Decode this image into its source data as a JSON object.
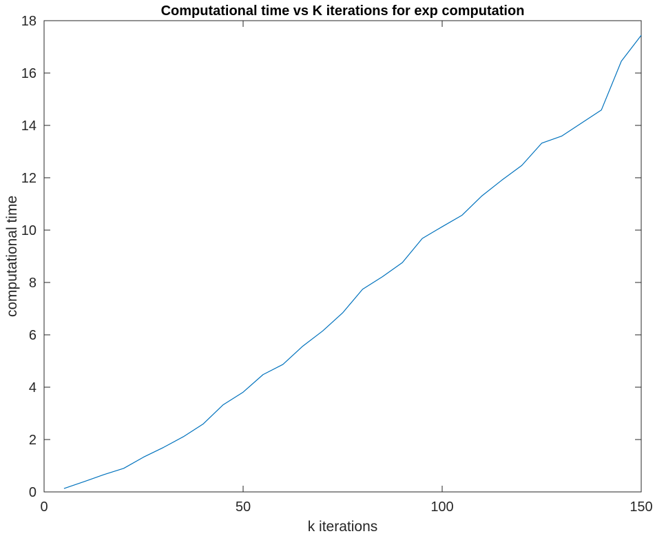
{
  "chart_data": {
    "type": "line",
    "title": "Computational time vs K iterations for exp computation",
    "xlabel": "k iterations",
    "ylabel": "computational time",
    "xlim": [
      0,
      150
    ],
    "ylim": [
      0,
      18
    ],
    "xticks": [
      0,
      50,
      100,
      150
    ],
    "yticks": [
      0,
      2,
      4,
      6,
      8,
      10,
      12,
      14,
      16,
      18
    ],
    "grid": false,
    "legend": "none",
    "line_color": "#0072BD",
    "series": [
      {
        "x": [
          5,
          10,
          15,
          20,
          25,
          30,
          35,
          40,
          45,
          50,
          55,
          60,
          65,
          70,
          75,
          80,
          85,
          90,
          95,
          100,
          105,
          110,
          115,
          120,
          125,
          130,
          135,
          140,
          145,
          150
        ],
        "values": [
          0.13,
          0.39,
          0.66,
          0.9,
          1.33,
          1.7,
          2.11,
          2.6,
          3.33,
          3.81,
          4.48,
          4.87,
          5.57,
          6.15,
          6.84,
          7.74,
          8.22,
          8.76,
          9.68,
          10.13,
          10.57,
          11.31,
          11.91,
          12.47,
          13.32,
          13.59,
          14.09,
          14.59,
          16.45,
          17.44
        ]
      }
    ]
  }
}
